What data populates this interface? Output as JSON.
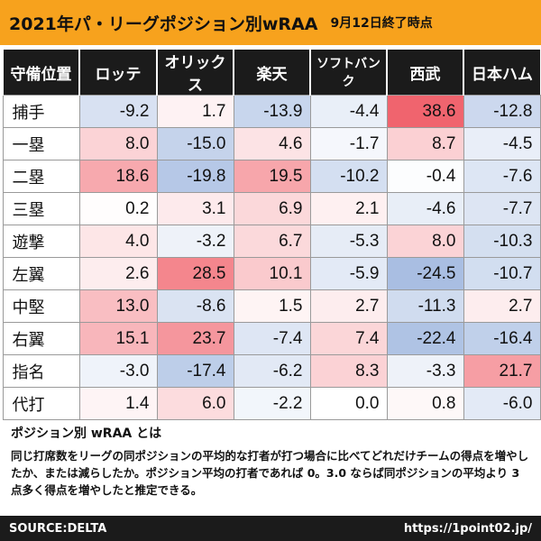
{
  "header": {
    "title": "2021年パ・リーグポジション別wRAA",
    "subtitle": "9月12日終了時点"
  },
  "chart_data": {
    "type": "table",
    "title": "2021年パ・リーグポジション別wRAA",
    "corner_label": "守備位置",
    "teams": [
      "ロッテ",
      "オリックス",
      "楽天",
      "ソフトバンク",
      "西武",
      "日本ハム"
    ],
    "positions": [
      "捕手",
      "一塁",
      "二塁",
      "三塁",
      "遊撃",
      "左翼",
      "中堅",
      "右翼",
      "指名",
      "代打"
    ],
    "values": [
      [
        "-9.2",
        "1.7",
        "-13.9",
        "-4.4",
        "38.6",
        "-12.8"
      ],
      [
        "8.0",
        "-15.0",
        "4.6",
        "-1.7",
        "8.7",
        "-4.5"
      ],
      [
        "18.6",
        "-19.8",
        "19.5",
        "-10.2",
        "-0.4",
        "-7.6"
      ],
      [
        "0.2",
        "3.1",
        "6.9",
        "2.1",
        "-4.6",
        "-7.7"
      ],
      [
        "4.0",
        "-3.2",
        "6.7",
        "-5.3",
        "8.0",
        "-10.3"
      ],
      [
        "2.6",
        "28.5",
        "10.1",
        "-5.9",
        "-24.5",
        "-10.7"
      ],
      [
        "13.0",
        "-8.6",
        "1.5",
        "2.7",
        "-11.3",
        "2.7"
      ],
      [
        "15.1",
        "23.7",
        "-7.4",
        "7.4",
        "-22.4",
        "-16.4"
      ],
      [
        "-3.0",
        "-17.4",
        "-6.2",
        "8.3",
        "-3.3",
        "21.7"
      ],
      [
        "1.4",
        "6.0",
        "-2.2",
        "0.0",
        "0.8",
        "-6.0"
      ]
    ],
    "color_scale": {
      "positive": "#f0606a",
      "negative": "#7f9fd4",
      "neutral": "#ffffff",
      "max_abs": 40
    }
  },
  "note": {
    "title": "ポジション別 wRAA とは",
    "body": "同じ打席数をリーグの同ポジションの平均的な打者が打つ場合に比べてどれだけチームの得点を増やしたか、または減らしたか。ポジション平均の打者であれば 0。3.0 ならば同ポジションの平均より 3 点多く得点を増やしたと推定できる。"
  },
  "footer": {
    "source": "SOURCE:DELTA",
    "url": "https://1point02.jp/"
  }
}
